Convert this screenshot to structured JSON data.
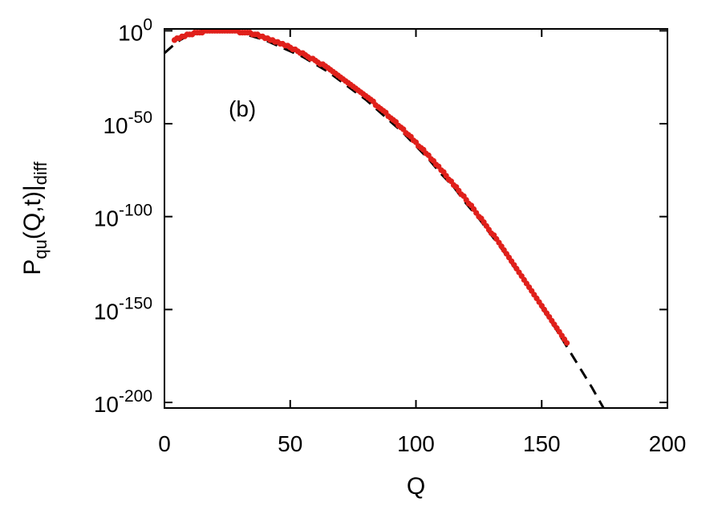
{
  "chart_data": {
    "type": "scatter",
    "xlabel": "Q",
    "ylabel": {
      "main": "P",
      "sub1": "qu",
      "mid": "(Q,t)|",
      "sub2": "diff"
    },
    "annotation": "(b)",
    "xlim": [
      0,
      200
    ],
    "ylim_exponent": [
      -203,
      1
    ],
    "y_scale": "log10",
    "x_ticks": [
      0,
      50,
      100,
      150,
      200
    ],
    "y_ticks": [
      {
        "base": "10",
        "exp": "0",
        "value_exp": 0
      },
      {
        "base": "10",
        "exp": "-50",
        "value_exp": -50
      },
      {
        "base": "10",
        "exp": "-100",
        "value_exp": -100
      },
      {
        "base": "10",
        "exp": "-150",
        "value_exp": -150
      },
      {
        "base": "10",
        "exp": "-200",
        "value_exp": -200
      }
    ],
    "grid": false,
    "series": [
      {
        "style": "dashed-line",
        "color": "#000000",
        "x": [
          0,
          5,
          10,
          15,
          20,
          25,
          30,
          35,
          40,
          45,
          50,
          55,
          60,
          65,
          70,
          75,
          80,
          85,
          90,
          95,
          100,
          105,
          110,
          115,
          120,
          125,
          130,
          135,
          140,
          145,
          150,
          155,
          160,
          165,
          170,
          175,
          178
        ],
        "log10_y": [
          -12,
          -6,
          -2,
          0,
          0,
          0,
          -1,
          -3,
          -5,
          -8,
          -11,
          -14,
          -18,
          -22,
          -27,
          -32,
          -37,
          -43,
          -49,
          -55,
          -62,
          -69,
          -77,
          -84,
          -93,
          -101,
          -110,
          -119,
          -129,
          -138,
          -149,
          -159,
          -170,
          -181,
          -192,
          -204,
          -211
        ]
      },
      {
        "style": "dots",
        "color": "#e0201b",
        "x": [
          4,
          5,
          6,
          7,
          8,
          9,
          10,
          11,
          12,
          13,
          14,
          15,
          16,
          17,
          18,
          19,
          20,
          21,
          22,
          23,
          24,
          25,
          26,
          27,
          28,
          29,
          30,
          31,
          32,
          33,
          34,
          35,
          36,
          37,
          38,
          39,
          40,
          41,
          42,
          43,
          44,
          45,
          46,
          47,
          48,
          49,
          50,
          51,
          52,
          53,
          54,
          55,
          56,
          57,
          58,
          59,
          60,
          61,
          62,
          63,
          64,
          65,
          66,
          67,
          68,
          69,
          70,
          71,
          72,
          73,
          74,
          75,
          76,
          77,
          78,
          79,
          80,
          81,
          82,
          83,
          84,
          85,
          86,
          87,
          88,
          89,
          90,
          91,
          92,
          93,
          94,
          95,
          96,
          97,
          98,
          99,
          100,
          101,
          102,
          103,
          104,
          105,
          106,
          107,
          108,
          109,
          110,
          111,
          112,
          113,
          114,
          115,
          116,
          117,
          118,
          119,
          120,
          121,
          122,
          123,
          124,
          125,
          126,
          127,
          128,
          129,
          130,
          131,
          132,
          133,
          134,
          135,
          136,
          137,
          138,
          139,
          140,
          141,
          142,
          143,
          144,
          145,
          146,
          147,
          148,
          149,
          150,
          151,
          152,
          153,
          154,
          155,
          156,
          157,
          158,
          159,
          160
        ],
        "log10_y": [
          -5,
          -4,
          -4,
          -3,
          -3,
          -2,
          -2,
          -2,
          -1,
          -1,
          -1,
          -1,
          0,
          0,
          0,
          0,
          0,
          0,
          0,
          0,
          0,
          0,
          0,
          0,
          0,
          0,
          -1,
          -1,
          -1,
          -1,
          -1,
          -2,
          -2,
          -2,
          -3,
          -3,
          -4,
          -4,
          -5,
          -5,
          -6,
          -6,
          -7,
          -7,
          -8,
          -8,
          -9,
          -10,
          -10,
          -11,
          -12,
          -12,
          -13,
          -14,
          -15,
          -15,
          -16,
          -17,
          -18,
          -18,
          -19,
          -20,
          -21,
          -22,
          -23,
          -24,
          -25,
          -26,
          -27,
          -28,
          -29,
          -30,
          -31,
          -32,
          -33,
          -34,
          -35,
          -36,
          -37,
          -38,
          -40,
          -41,
          -42,
          -43,
          -44,
          -46,
          -47,
          -48,
          -49,
          -51,
          -52,
          -53,
          -55,
          -56,
          -57,
          -59,
          -60,
          -62,
          -63,
          -64,
          -66,
          -67,
          -69,
          -70,
          -72,
          -73,
          -75,
          -76,
          -78,
          -80,
          -81,
          -83,
          -84,
          -86,
          -88,
          -89,
          -91,
          -93,
          -94,
          -96,
          -98,
          -100,
          -101,
          -103,
          -105,
          -107,
          -109,
          -110,
          -112,
          -114,
          -116,
          -118,
          -120,
          -122,
          -124,
          -126,
          -128,
          -130,
          -132,
          -134,
          -136,
          -138,
          -140,
          -142,
          -144,
          -146,
          -148,
          -150,
          -152,
          -154,
          -156,
          -158,
          -160,
          -162,
          -164,
          -166,
          -168
        ]
      }
    ]
  }
}
